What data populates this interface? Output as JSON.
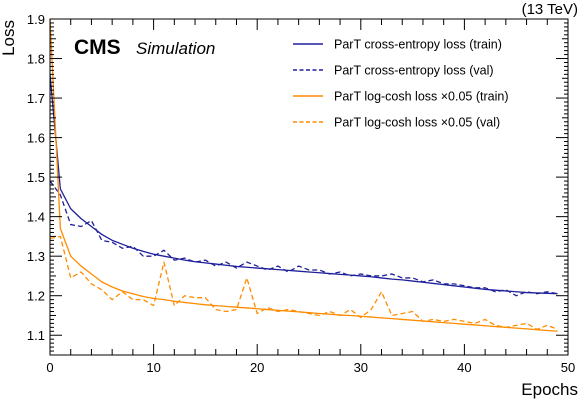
{
  "header": {
    "experiment": "CMS",
    "tag": "Simulation",
    "energy": "(13 TeV)"
  },
  "chart_data": {
    "type": "line",
    "xlabel": "Epochs",
    "ylabel": "Loss",
    "xlim": [
      0,
      50
    ],
    "ylim": [
      1.05,
      1.9
    ],
    "x_ticks": [
      0,
      10,
      20,
      30,
      40,
      50
    ],
    "x_tick_labels": [
      "0",
      "10",
      "20",
      "30",
      "40",
      "50"
    ],
    "y_ticks": [
      1.1,
      1.2,
      1.3,
      1.4,
      1.5,
      1.6,
      1.7,
      1.8,
      1.9
    ],
    "y_tick_labels": [
      "1.1",
      "1.2",
      "1.3",
      "1.4",
      "1.5",
      "1.6",
      "1.7",
      "1.8",
      "1.9"
    ],
    "grid": false,
    "legend_position": "top-right",
    "x": [
      0,
      1,
      2,
      3,
      4,
      5,
      6,
      7,
      8,
      9,
      10,
      11,
      12,
      13,
      14,
      15,
      16,
      17,
      18,
      19,
      20,
      21,
      22,
      23,
      24,
      25,
      26,
      27,
      28,
      29,
      30,
      31,
      32,
      33,
      34,
      35,
      36,
      37,
      38,
      39,
      40,
      41,
      42,
      43,
      44,
      45,
      46,
      47,
      48,
      49
    ],
    "series": [
      {
        "name": "ParT cross-entropy loss (train)",
        "color": "#1f1f9b",
        "dash": "solid",
        "values": [
          1.76,
          1.47,
          1.42,
          1.395,
          1.375,
          1.355,
          1.34,
          1.33,
          1.32,
          1.312,
          1.305,
          1.3,
          1.295,
          1.29,
          1.286,
          1.283,
          1.28,
          1.277,
          1.274,
          1.272,
          1.27,
          1.268,
          1.266,
          1.264,
          1.262,
          1.26,
          1.258,
          1.256,
          1.254,
          1.252,
          1.25,
          1.248,
          1.245,
          1.242,
          1.24,
          1.237,
          1.234,
          1.231,
          1.228,
          1.225,
          1.222,
          1.219,
          1.216,
          1.214,
          1.212,
          1.21,
          1.208,
          1.207,
          1.206,
          1.205
        ]
      },
      {
        "name": "ParT cross-entropy loss (val)",
        "color": "#1f1f9b",
        "dash": "dashed",
        "values": [
          1.49,
          1.455,
          1.38,
          1.375,
          1.39,
          1.34,
          1.335,
          1.32,
          1.325,
          1.3,
          1.3,
          1.315,
          1.29,
          1.295,
          1.285,
          1.29,
          1.275,
          1.285,
          1.27,
          1.285,
          1.275,
          1.265,
          1.275,
          1.26,
          1.275,
          1.265,
          1.265,
          1.255,
          1.26,
          1.25,
          1.255,
          1.25,
          1.25,
          1.255,
          1.245,
          1.245,
          1.235,
          1.24,
          1.23,
          1.23,
          1.225,
          1.22,
          1.22,
          1.21,
          1.215,
          1.2,
          1.21,
          1.205,
          1.21,
          1.205
        ]
      },
      {
        "name": "ParT log-cosh loss ×0.05 (train)",
        "color": "#ff8c00",
        "dash": "solid",
        "values": [
          1.9,
          1.37,
          1.3,
          1.275,
          1.255,
          1.235,
          1.222,
          1.212,
          1.205,
          1.198,
          1.193,
          1.19,
          1.186,
          1.183,
          1.18,
          1.177,
          1.175,
          1.173,
          1.171,
          1.169,
          1.167,
          1.165,
          1.163,
          1.161,
          1.159,
          1.157,
          1.155,
          1.153,
          1.151,
          1.15,
          1.148,
          1.146,
          1.144,
          1.142,
          1.14,
          1.138,
          1.136,
          1.134,
          1.132,
          1.13,
          1.128,
          1.126,
          1.124,
          1.122,
          1.12,
          1.118,
          1.116,
          1.114,
          1.112,
          1.11
        ]
      },
      {
        "name": "ParT log-cosh loss ×0.05 (val)",
        "color": "#ff8c00",
        "dash": "dashed",
        "values": [
          1.345,
          1.35,
          1.245,
          1.26,
          1.23,
          1.215,
          1.19,
          1.21,
          1.19,
          1.19,
          1.175,
          1.285,
          1.175,
          1.2,
          1.195,
          1.195,
          1.165,
          1.16,
          1.165,
          1.245,
          1.155,
          1.17,
          1.16,
          1.165,
          1.16,
          1.155,
          1.15,
          1.16,
          1.15,
          1.165,
          1.145,
          1.165,
          1.21,
          1.15,
          1.155,
          1.16,
          1.135,
          1.14,
          1.135,
          1.14,
          1.135,
          1.13,
          1.14,
          1.125,
          1.12,
          1.125,
          1.13,
          1.115,
          1.125,
          1.115
        ]
      }
    ]
  }
}
